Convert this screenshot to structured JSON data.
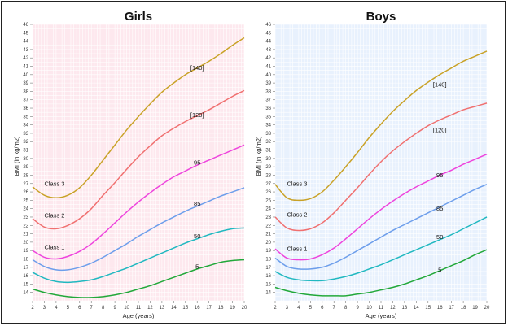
{
  "chart_data": [
    {
      "type": "line",
      "title": "Girls",
      "xlabel": "Age (years)",
      "ylabel": "BMI (in kg/m2)",
      "xlim": [
        2,
        20
      ],
      "ylim": [
        13,
        46
      ],
      "grid": true,
      "background": "#fde8ee",
      "x": [
        2,
        3,
        4,
        5,
        6,
        7,
        8,
        9,
        10,
        11,
        12,
        13,
        14,
        15,
        16,
        17,
        18,
        19,
        20
      ],
      "series": [
        {
          "color": "#c9a227",
          "values": [
            26.6,
            25.6,
            25.3,
            25.6,
            26.5,
            28.0,
            29.8,
            31.6,
            33.4,
            35.0,
            36.5,
            37.9,
            39.0,
            40.0,
            40.8,
            41.6,
            42.5,
            43.5,
            44.4
          ]
        },
        {
          "color": "#f07070",
          "values": [
            22.8,
            21.8,
            21.6,
            22.0,
            22.8,
            24.0,
            25.6,
            27.1,
            28.7,
            30.2,
            31.5,
            32.7,
            33.6,
            34.4,
            35.1,
            35.8,
            36.6,
            37.4,
            38.1
          ]
        },
        {
          "color": "#ee44dd",
          "values": [
            19.0,
            18.2,
            18.0,
            18.3,
            18.9,
            19.8,
            21.0,
            22.3,
            23.6,
            24.8,
            25.9,
            26.9,
            27.8,
            28.5,
            29.2,
            29.8,
            30.4,
            31.0,
            31.6
          ]
        },
        {
          "color": "#6d9eeb",
          "values": [
            17.9,
            17.1,
            16.7,
            16.7,
            17.0,
            17.5,
            18.2,
            19.0,
            19.8,
            20.7,
            21.5,
            22.3,
            23.0,
            23.7,
            24.3,
            24.9,
            25.5,
            26.0,
            26.5
          ]
        },
        {
          "color": "#20b8c0",
          "values": [
            16.4,
            15.7,
            15.3,
            15.2,
            15.3,
            15.5,
            15.9,
            16.4,
            16.9,
            17.5,
            18.1,
            18.7,
            19.3,
            19.9,
            20.4,
            20.9,
            21.3,
            21.6,
            21.7
          ]
        },
        {
          "color": "#22a83a",
          "values": [
            14.4,
            14.0,
            13.7,
            13.5,
            13.4,
            13.4,
            13.5,
            13.7,
            14.0,
            14.4,
            14.8,
            15.3,
            15.8,
            16.3,
            16.8,
            17.2,
            17.6,
            17.8,
            17.9
          ]
        }
      ],
      "curve_labels": [
        {
          "text": "[140]",
          "x": 16,
          "y": 40.8
        },
        {
          "text": "[120]",
          "x": 16,
          "y": 35.2
        },
        {
          "text": "95",
          "x": 16,
          "y": 29.5
        },
        {
          "text": "85",
          "x": 16,
          "y": 24.6
        },
        {
          "text": "50",
          "x": 16,
          "y": 20.7
        },
        {
          "text": "5",
          "x": 16,
          "y": 17.1
        }
      ],
      "class_labels": [
        {
          "text": "Class 3",
          "x": 3,
          "y": 27.0
        },
        {
          "text": "Class 2",
          "x": 3,
          "y": 23.2
        },
        {
          "text": "Class 1",
          "x": 3,
          "y": 19.4
        }
      ]
    },
    {
      "type": "line",
      "title": "Boys",
      "xlabel": "Age (years)",
      "ylabel": "BMI (in kg/m2)",
      "xlim": [
        2,
        20
      ],
      "ylim": [
        13,
        46
      ],
      "grid": true,
      "background": "#e8f1fd",
      "x": [
        2,
        3,
        4,
        5,
        6,
        7,
        8,
        9,
        10,
        11,
        12,
        13,
        14,
        15,
        16,
        17,
        18,
        19,
        20
      ],
      "series": [
        {
          "color": "#c9a227",
          "values": [
            26.9,
            25.3,
            25.0,
            25.2,
            26.0,
            27.4,
            29.0,
            30.7,
            32.5,
            34.1,
            35.6,
            36.9,
            38.1,
            39.1,
            40.0,
            40.8,
            41.6,
            42.2,
            42.8
          ]
        },
        {
          "color": "#f07070",
          "values": [
            23.0,
            21.7,
            21.4,
            21.6,
            22.3,
            23.5,
            25.0,
            26.5,
            28.1,
            29.6,
            30.9,
            32.0,
            33.0,
            33.9,
            34.6,
            35.2,
            35.8,
            36.2,
            36.6
          ]
        },
        {
          "color": "#ee44dd",
          "values": [
            19.2,
            18.1,
            17.9,
            18.0,
            18.5,
            19.3,
            20.4,
            21.6,
            22.8,
            23.9,
            24.9,
            25.8,
            26.6,
            27.3,
            28.0,
            28.6,
            29.3,
            29.9,
            30.5
          ]
        },
        {
          "color": "#6d9eeb",
          "values": [
            18.1,
            17.1,
            16.8,
            16.8,
            17.0,
            17.5,
            18.2,
            19.0,
            19.8,
            20.6,
            21.4,
            22.1,
            22.8,
            23.5,
            24.2,
            24.9,
            25.6,
            26.3,
            26.9
          ]
        },
        {
          "color": "#20b8c0",
          "values": [
            16.5,
            15.8,
            15.5,
            15.4,
            15.4,
            15.6,
            15.9,
            16.3,
            16.8,
            17.3,
            17.9,
            18.5,
            19.1,
            19.7,
            20.3,
            20.9,
            21.6,
            22.3,
            23.0
          ]
        },
        {
          "color": "#22a83a",
          "values": [
            14.6,
            14.2,
            13.9,
            13.7,
            13.6,
            13.6,
            13.6,
            13.8,
            14.0,
            14.3,
            14.6,
            15.0,
            15.5,
            16.0,
            16.6,
            17.2,
            17.8,
            18.5,
            19.1
          ]
        }
      ],
      "curve_labels": [
        {
          "text": "[140]",
          "x": 16,
          "y": 38.8
        },
        {
          "text": "[120]",
          "x": 16,
          "y": 33.4
        },
        {
          "text": "95",
          "x": 16,
          "y": 28.0
        },
        {
          "text": "85",
          "x": 16,
          "y": 24.0
        },
        {
          "text": "50",
          "x": 16,
          "y": 20.6
        },
        {
          "text": "5",
          "x": 16,
          "y": 16.7
        }
      ],
      "class_labels": [
        {
          "text": "Class 3",
          "x": 3,
          "y": 27.0
        },
        {
          "text": "Class 2",
          "x": 3,
          "y": 23.3
        },
        {
          "text": "Class 1",
          "x": 3,
          "y": 19.2
        }
      ]
    }
  ]
}
